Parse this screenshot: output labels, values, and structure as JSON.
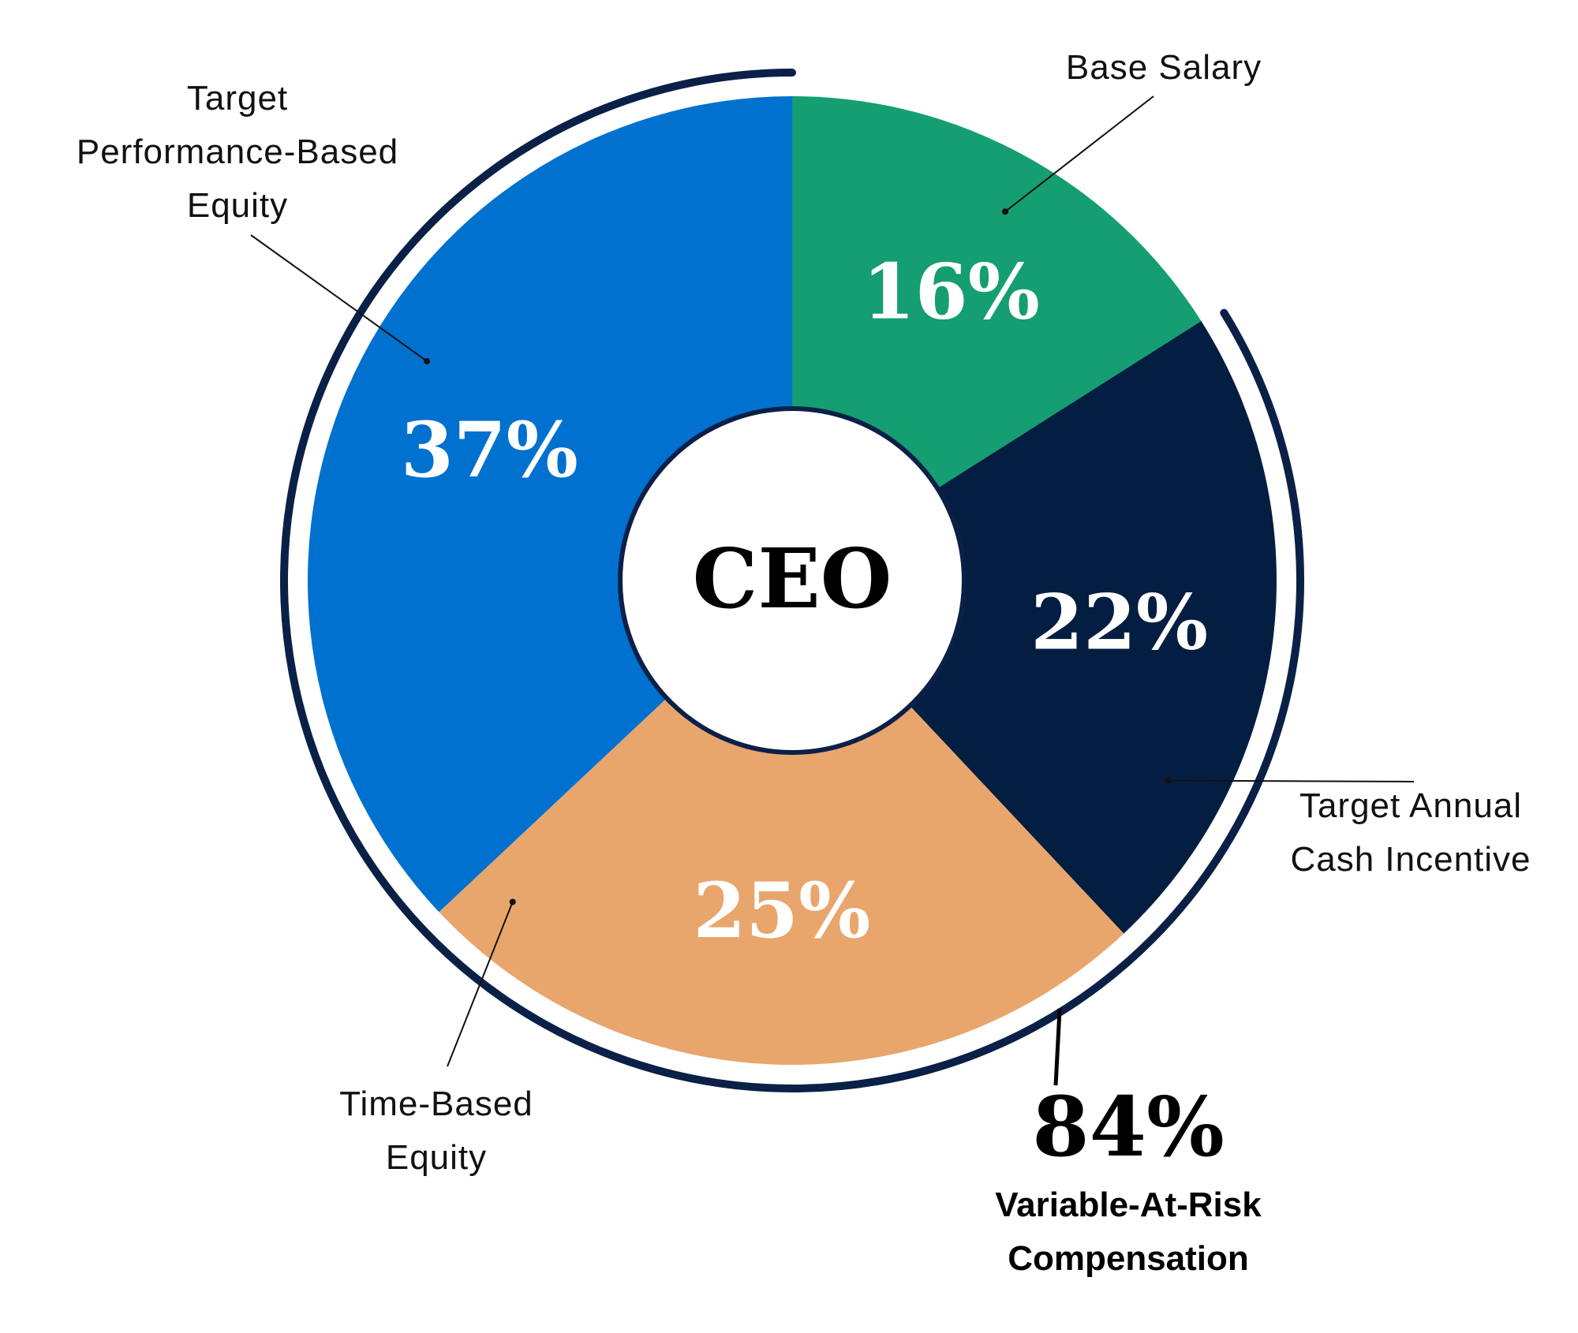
{
  "chart_data": {
    "type": "pie",
    "variant": "donut",
    "center_label": "CEO",
    "slices": [
      {
        "name": "Base Salary",
        "label_lines": [
          "Base Salary"
        ],
        "value": 16,
        "display": "16%",
        "color": "#149e72",
        "at_risk": false
      },
      {
        "name": "Target Annual Cash Incentive",
        "label_lines": [
          "Target Annual",
          "Cash Incentive"
        ],
        "value": 22,
        "display": "22%",
        "color": "#041e42",
        "at_risk": true
      },
      {
        "name": "Time-Based Equity",
        "label_lines": [
          "Time-Based",
          "Equity"
        ],
        "value": 25,
        "display": "25%",
        "color": "#e8a66d",
        "at_risk": true
      },
      {
        "name": "Target Performance-Based Equity",
        "label_lines": [
          "Target",
          "Performance-Based",
          "Equity"
        ],
        "value": 37,
        "display": "37%",
        "color": "#0071ce",
        "at_risk": true
      }
    ],
    "at_risk_total": {
      "value": 84,
      "display": "84%",
      "caption_lines": [
        "Variable-At-Risk",
        "Compensation"
      ]
    },
    "outline_color": "#0b2047",
    "legend": "none"
  }
}
